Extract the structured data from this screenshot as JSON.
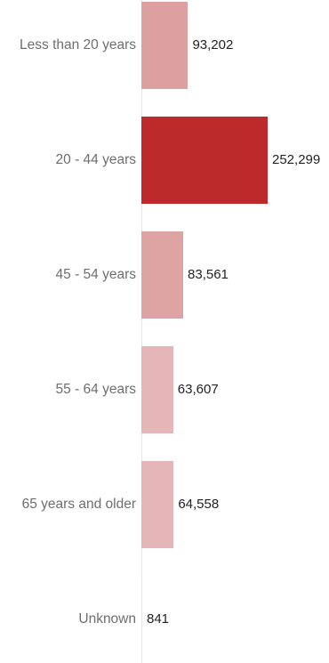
{
  "chart_data": {
    "type": "bar",
    "orientation": "horizontal",
    "categories": [
      "Less than 20 years",
      "20 -  44 years",
      "45 - 54 years",
      "55 - 64 years",
      "65 years and older",
      "Unknown"
    ],
    "values": [
      93202,
      252299,
      83561,
      63607,
      64558,
      841
    ],
    "value_labels": [
      "93,202",
      "252,299",
      "83,561",
      "63,607",
      "64,558",
      "841"
    ],
    "bar_colors": [
      "#de9fa0",
      "#bc2a2b",
      "#dea3a3",
      "#e5b6b7",
      "#e5b6b7",
      "#f3e3e3"
    ],
    "xlim": [
      0,
      252299
    ],
    "grid": false,
    "legend": "none"
  }
}
